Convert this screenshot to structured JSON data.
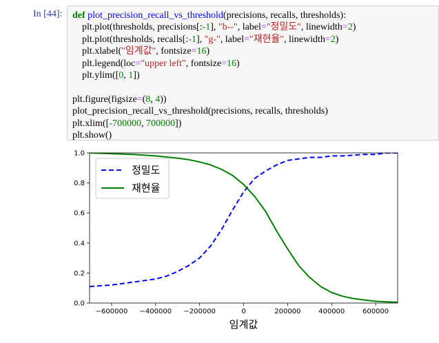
{
  "cell": {
    "prompt": "In [44]:",
    "code_lines": [
      [
        {
          "t": "def ",
          "c": "kw"
        },
        {
          "t": "plot_precision_recall_vs_threshold",
          "c": "fn"
        },
        {
          "t": "(precisions, recalls, thresholds):",
          "c": "default"
        }
      ],
      [
        {
          "t": "    plt.plot(thresholds, precisions[:",
          "c": "default"
        },
        {
          "t": "-1",
          "c": "num"
        },
        {
          "t": "], ",
          "c": "default"
        },
        {
          "t": "\"b--\"",
          "c": "str"
        },
        {
          "t": ", label",
          "c": "default"
        },
        {
          "t": "=",
          "c": "op"
        },
        {
          "t": "\"정밀도\"",
          "c": "str"
        },
        {
          "t": ", linewidth",
          "c": "default"
        },
        {
          "t": "=",
          "c": "op"
        },
        {
          "t": "2",
          "c": "num"
        },
        {
          "t": ")",
          "c": "default"
        }
      ],
      [
        {
          "t": "    plt.plot(thresholds, recalls[:",
          "c": "default"
        },
        {
          "t": "-1",
          "c": "num"
        },
        {
          "t": "], ",
          "c": "default"
        },
        {
          "t": "\"g-\"",
          "c": "str"
        },
        {
          "t": ", label",
          "c": "default"
        },
        {
          "t": "=",
          "c": "op"
        },
        {
          "t": "\"재현율\"",
          "c": "str"
        },
        {
          "t": ", linewidth",
          "c": "default"
        },
        {
          "t": "=",
          "c": "op"
        },
        {
          "t": "2",
          "c": "num"
        },
        {
          "t": ")",
          "c": "default"
        }
      ],
      [
        {
          "t": "    plt.xlabel(",
          "c": "default"
        },
        {
          "t": "\"임계값\"",
          "c": "str"
        },
        {
          "t": ", fontsize",
          "c": "default"
        },
        {
          "t": "=",
          "c": "op"
        },
        {
          "t": "16",
          "c": "num"
        },
        {
          "t": ")",
          "c": "default"
        }
      ],
      [
        {
          "t": "    plt.legend(loc",
          "c": "default"
        },
        {
          "t": "=",
          "c": "op"
        },
        {
          "t": "\"upper left\"",
          "c": "str"
        },
        {
          "t": ", fontsize",
          "c": "default"
        },
        {
          "t": "=",
          "c": "op"
        },
        {
          "t": "16",
          "c": "num"
        },
        {
          "t": ")",
          "c": "default"
        }
      ],
      [
        {
          "t": "    plt.ylim([",
          "c": "default"
        },
        {
          "t": "0",
          "c": "num"
        },
        {
          "t": ", ",
          "c": "default"
        },
        {
          "t": "1",
          "c": "num"
        },
        {
          "t": "])",
          "c": "default"
        }
      ],
      [],
      [
        {
          "t": "plt.figure(figsize",
          "c": "default"
        },
        {
          "t": "=",
          "c": "op"
        },
        {
          "t": "(",
          "c": "default"
        },
        {
          "t": "8",
          "c": "num"
        },
        {
          "t": ", ",
          "c": "default"
        },
        {
          "t": "4",
          "c": "num"
        },
        {
          "t": "))",
          "c": "default"
        }
      ],
      [
        {
          "t": "plot_precision_recall_vs_threshold(precisions, recalls, thresholds)",
          "c": "default"
        }
      ],
      [
        {
          "t": "plt.xlim([",
          "c": "default"
        },
        {
          "t": "-700000",
          "c": "num"
        },
        {
          "t": ", ",
          "c": "default"
        },
        {
          "t": "700000",
          "c": "num"
        },
        {
          "t": "])",
          "c": "default"
        }
      ],
      [
        {
          "t": "plt.show()",
          "c": "default"
        }
      ]
    ]
  },
  "colors": {
    "prompt": "#303f9f",
    "keyword": "#008000",
    "function": "#0000ff",
    "string": "#ba2121",
    "number": "#008000",
    "operator": "#aa22ff",
    "precision_line": "#0000ff",
    "recall_line": "#008000"
  },
  "chart_data": {
    "type": "line",
    "title": "",
    "xlabel": "임계값",
    "ylabel": "",
    "xlim": [
      -700000,
      700000
    ],
    "ylim": [
      0,
      1
    ],
    "xticks": [
      -600000,
      -400000,
      -200000,
      0,
      200000,
      400000,
      600000
    ],
    "xtick_labels": [
      "−600000",
      "−400000",
      "−200000",
      "0",
      "200000",
      "400000",
      "600000"
    ],
    "yticks": [
      0.0,
      0.2,
      0.4,
      0.6,
      0.8,
      1.0
    ],
    "ytick_labels": [
      "0.0",
      "0.2",
      "0.4",
      "0.6",
      "0.8",
      "1.0"
    ],
    "grid": false,
    "legend": {
      "location": "upper-left"
    },
    "series": [
      {
        "name": "정밀도",
        "style": "dashed",
        "color": "#0000ff",
        "x": [
          -700000,
          -600000,
          -500000,
          -400000,
          -350000,
          -300000,
          -250000,
          -200000,
          -150000,
          -100000,
          -50000,
          0,
          50000,
          100000,
          150000,
          200000,
          250000,
          300000,
          350000,
          400000,
          450000,
          500000,
          550000,
          600000,
          650000,
          700000
        ],
        "y": [
          0.11,
          0.12,
          0.14,
          0.16,
          0.18,
          0.21,
          0.25,
          0.3,
          0.38,
          0.49,
          0.62,
          0.74,
          0.83,
          0.88,
          0.92,
          0.95,
          0.96,
          0.97,
          0.97,
          0.98,
          0.98,
          0.985,
          0.99,
          0.99,
          1.0,
          1.0
        ]
      },
      {
        "name": "재현율",
        "style": "solid",
        "color": "#008000",
        "x": [
          -700000,
          -600000,
          -500000,
          -400000,
          -300000,
          -250000,
          -200000,
          -150000,
          -100000,
          -50000,
          0,
          50000,
          100000,
          150000,
          200000,
          250000,
          300000,
          350000,
          400000,
          450000,
          500000,
          550000,
          600000,
          650000,
          700000
        ],
        "y": [
          1.0,
          0.995,
          0.99,
          0.98,
          0.965,
          0.955,
          0.94,
          0.92,
          0.89,
          0.85,
          0.79,
          0.71,
          0.61,
          0.48,
          0.36,
          0.25,
          0.17,
          0.11,
          0.07,
          0.045,
          0.03,
          0.02,
          0.012,
          0.008,
          0.005
        ]
      }
    ]
  }
}
